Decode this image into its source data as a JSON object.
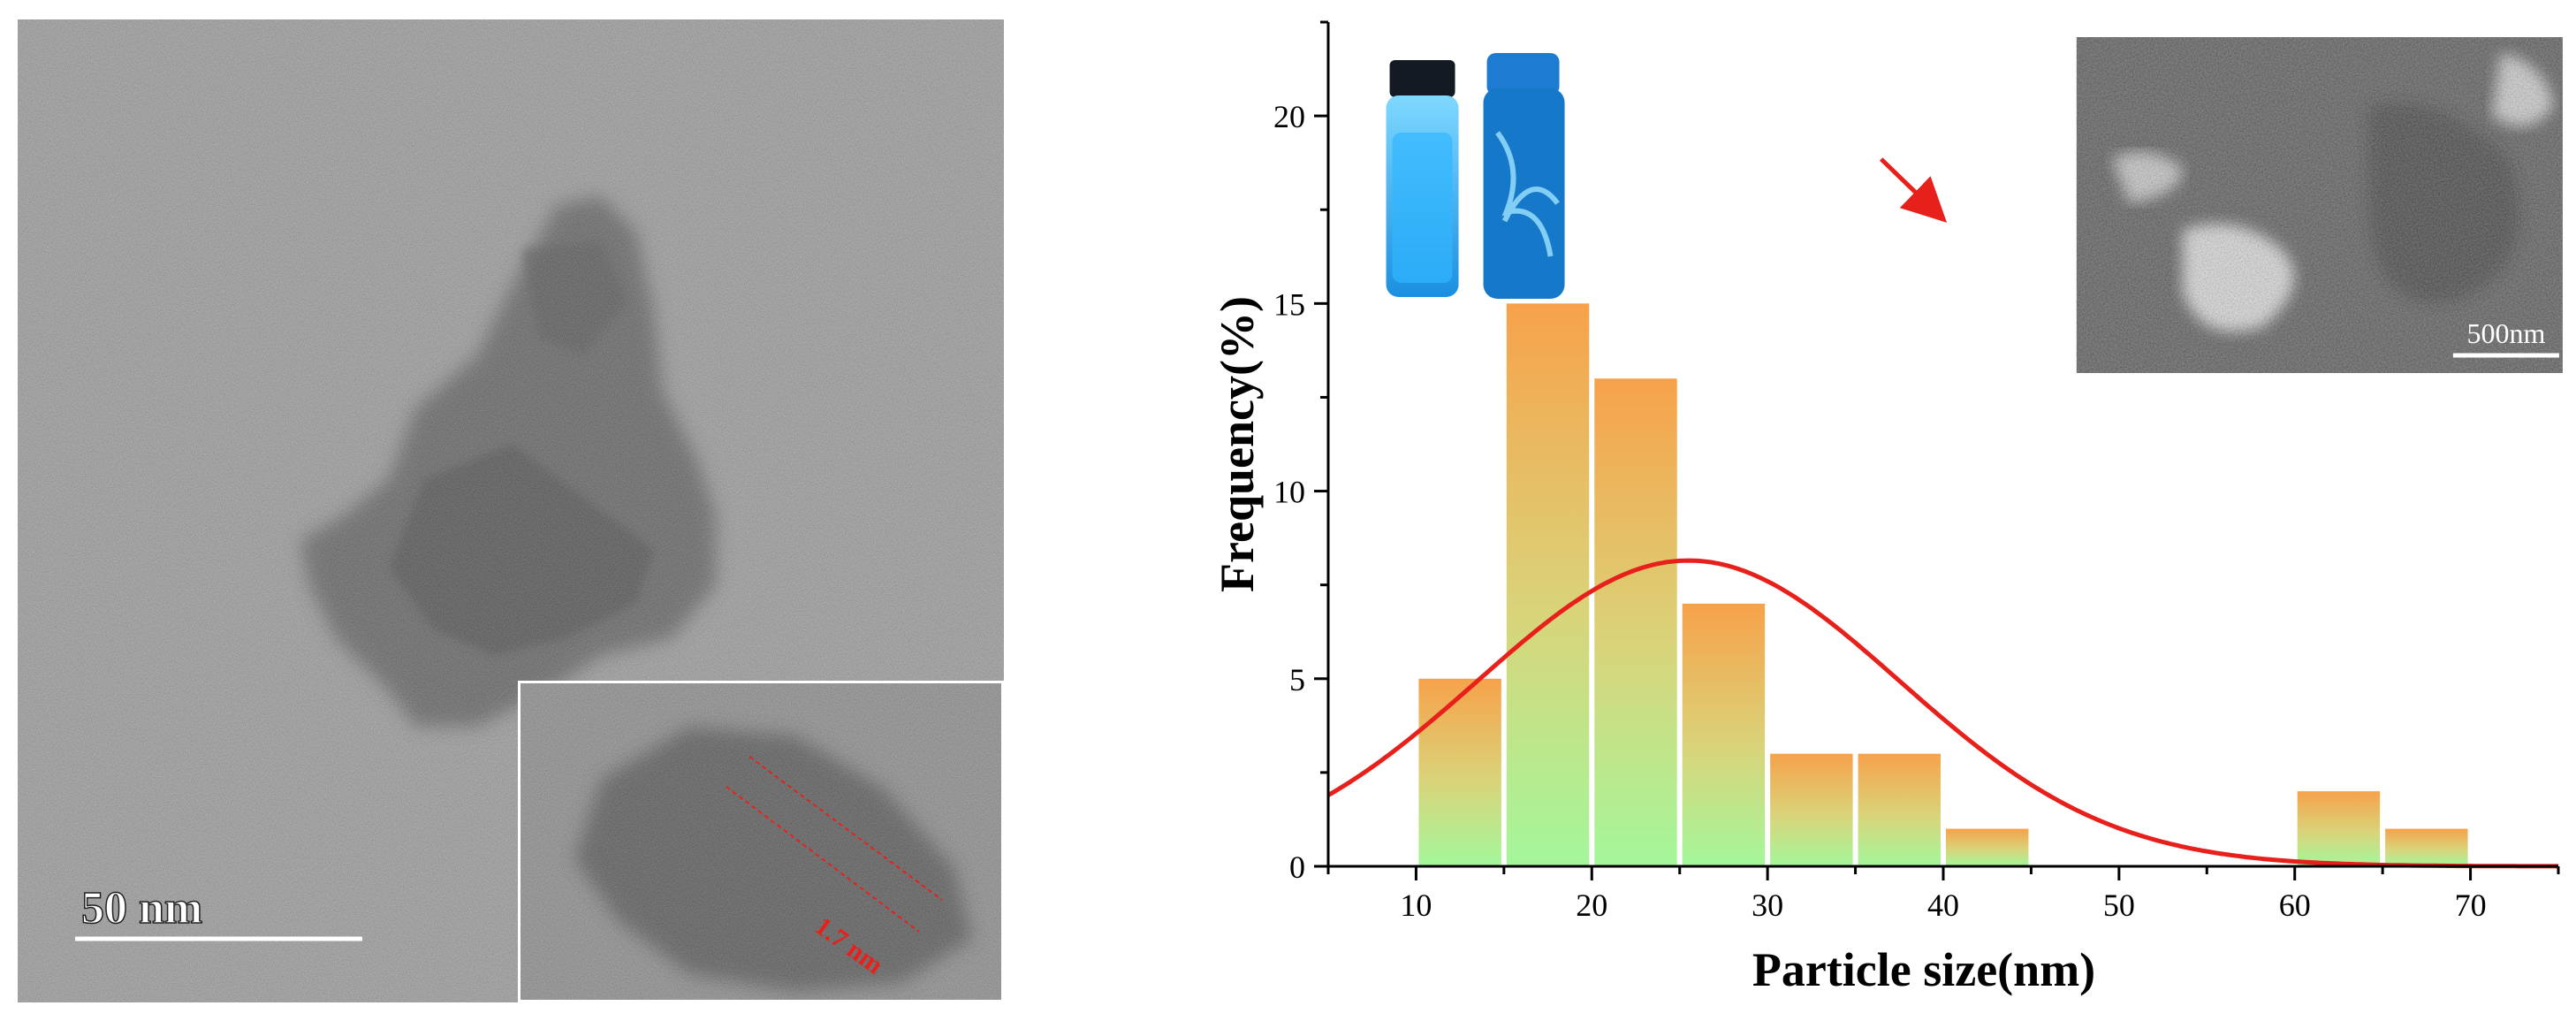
{
  "micrograph": {
    "scale_bar_label": "50 nm",
    "lattice_label": "1.7 nm",
    "colors": {
      "background": "#8c8c8c",
      "particle": "#3c3c3c",
      "inset_border": "#ffffff",
      "lattice_lines": "#e8201b"
    }
  },
  "inset_micrograph": {
    "scale_bar_label": "500nm"
  },
  "chart_data": {
    "type": "bar",
    "xlabel": "Particle size(nm)",
    "ylabel": "Frequency(%)",
    "xlim": [
      5,
      75
    ],
    "ylim": [
      0,
      22.5
    ],
    "xticks": [
      10,
      20,
      30,
      40,
      50,
      60,
      70
    ],
    "yticks": [
      0,
      5,
      10,
      15,
      20
    ],
    "bins": [
      {
        "from": 10,
        "to": 15,
        "value": 5
      },
      {
        "from": 15,
        "to": 20,
        "value": 15
      },
      {
        "from": 20,
        "to": 25,
        "value": 13
      },
      {
        "from": 25,
        "to": 30,
        "value": 7
      },
      {
        "from": 30,
        "to": 35,
        "value": 3
      },
      {
        "from": 35,
        "to": 40,
        "value": 3
      },
      {
        "from": 40,
        "to": 45,
        "value": 1
      },
      {
        "from": 60,
        "to": 65,
        "value": 2
      },
      {
        "from": 65,
        "to": 70,
        "value": 1
      }
    ],
    "fit_curve": {
      "type": "gaussian",
      "mean": 25.5,
      "sigma": 12,
      "peak": 8.15
    },
    "colors": {
      "bar_top": "#f7a24a",
      "bar_bottom": "#a4f79b",
      "fit": "#e8201b",
      "axis": "#000000"
    }
  }
}
